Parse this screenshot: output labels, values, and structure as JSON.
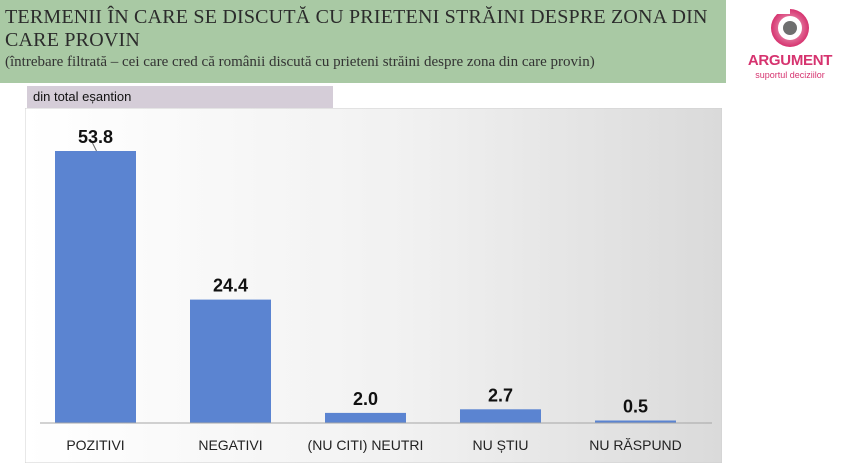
{
  "header": {
    "title": "TERMENII ÎN CARE SE DISCUTĂ CU PRIETENI STRĂINI DESPRE ZONA DIN CARE PROVIN",
    "subtitle": "(întrebare filtrată – cei care cred că românii discută cu prieteni străini despre zona din care provin)"
  },
  "logo": {
    "name": "ARGUMENT",
    "tagline": "suportul deciziilor"
  },
  "base_label": "din total eșantion",
  "colors": {
    "bar": "#5b84d1",
    "header_bg": "#a9c9a4",
    "label_bg": "#d5cdd8",
    "brand": "#d6336f"
  },
  "chart_data": {
    "type": "bar",
    "categories": [
      "POZITIVI",
      "NEGATIVI",
      "(NU CITI) NEUTRI",
      "NU ȘTIU",
      "NU RĂSPUND"
    ],
    "values": [
      53.8,
      24.4,
      2.0,
      2.7,
      0.5
    ],
    "data_labels": [
      "53.8",
      "24.4",
      "2.0",
      "2.7",
      "0.5"
    ],
    "ylim": [
      0,
      60
    ],
    "grid": false
  }
}
